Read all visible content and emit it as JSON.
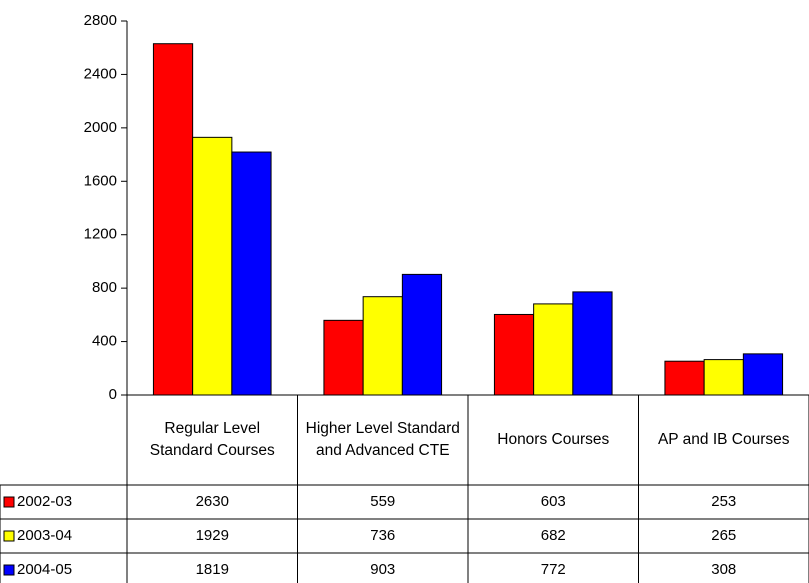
{
  "chart_data": {
    "type": "bar",
    "categories": [
      "Regular Level Standard Courses",
      "Higher Level Standard and Advanced CTE",
      "Honors Courses",
      "AP and IB Courses"
    ],
    "series": [
      {
        "name": "2002-03",
        "color": "#ff0000",
        "values": [
          2630,
          559,
          603,
          253
        ]
      },
      {
        "name": "2003-04",
        "color": "#ffff00",
        "values": [
          1929,
          736,
          682,
          265
        ]
      },
      {
        "name": "2004-05",
        "color": "#0000ff",
        "values": [
          1819,
          903,
          772,
          308
        ]
      }
    ],
    "ylim": [
      0,
      2800
    ],
    "yticks": [
      0,
      400,
      800,
      1200,
      1600,
      2000,
      2400,
      2800
    ],
    "grid": false,
    "data_table": true
  }
}
